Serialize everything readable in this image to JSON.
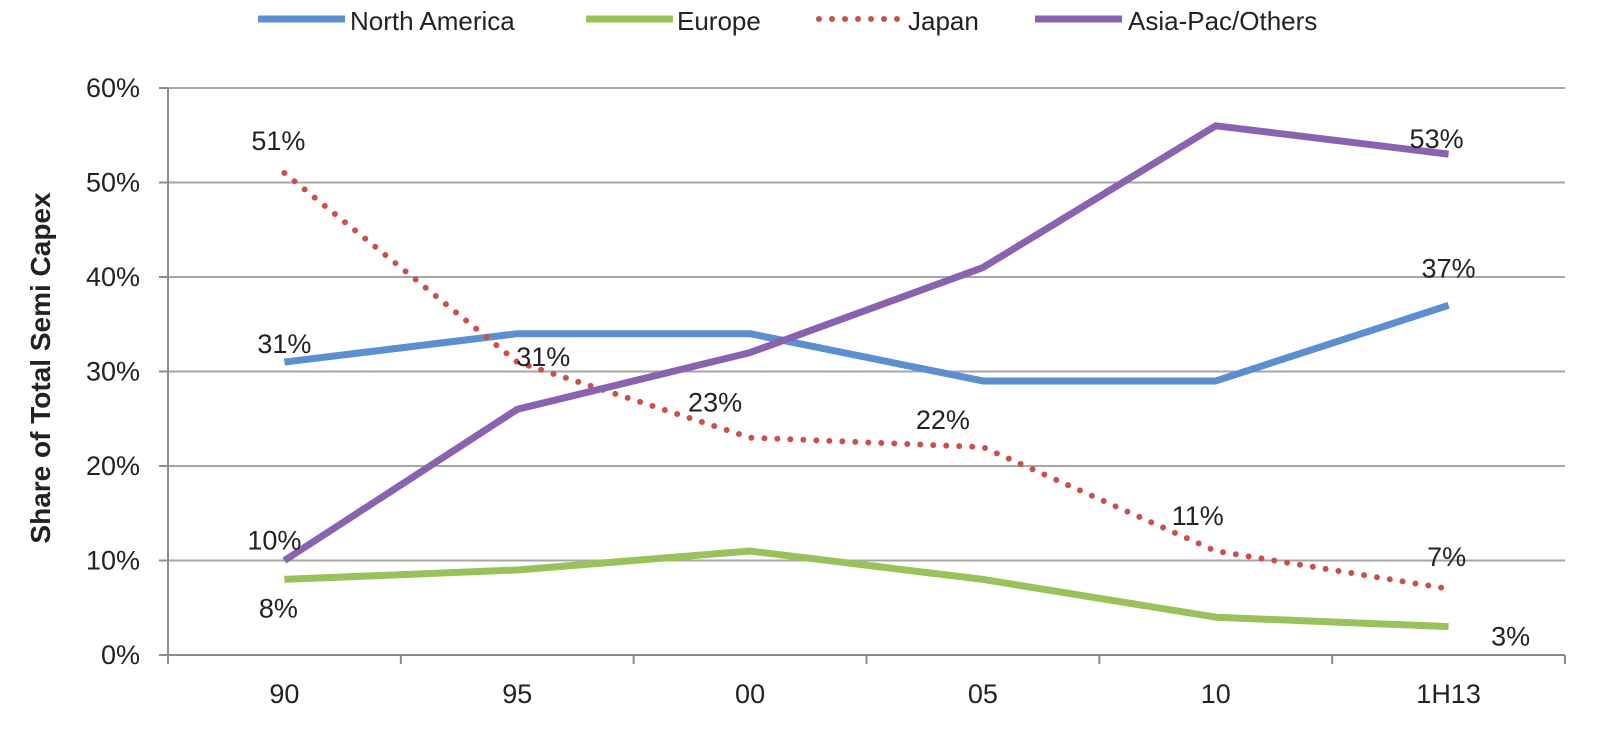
{
  "chart_data": {
    "type": "line",
    "title": "",
    "xlabel": "",
    "ylabel": "Share of Total Semi Capex",
    "categories": [
      "90",
      "95",
      "00",
      "05",
      "10",
      "1H13"
    ],
    "ylim": [
      0,
      60
    ],
    "yticks": [
      0,
      10,
      20,
      30,
      40,
      50,
      60
    ],
    "ytick_labels": [
      "0%",
      "10%",
      "20%",
      "30%",
      "40%",
      "50%",
      "60%"
    ],
    "grid": true,
    "legend_position": "top",
    "series": [
      {
        "name": "North America",
        "color": "#5b8fd0",
        "style": "solid",
        "values": [
          31,
          34,
          34,
          29,
          29,
          37
        ],
        "labels": [
          "31%",
          "",
          "",
          "",
          "",
          "37%"
        ]
      },
      {
        "name": "Europe",
        "color": "#9bc15a",
        "style": "solid",
        "values": [
          8,
          9,
          11,
          8,
          4,
          3
        ],
        "labels": [
          "8%",
          "",
          "",
          "",
          "",
          "3%"
        ]
      },
      {
        "name": "Japan",
        "color": "#c9504b",
        "style": "dotted",
        "values": [
          51,
          31,
          23,
          22,
          11,
          7
        ],
        "labels": [
          "51%",
          "31%",
          "23%",
          "22%",
          "11%",
          "7%"
        ]
      },
      {
        "name": "Asia-Pac/Others",
        "color": "#8a63b0",
        "style": "solid",
        "values": [
          10,
          26,
          32,
          41,
          56,
          53
        ],
        "labels": [
          "10%",
          "",
          "",
          "",
          "",
          "53%"
        ]
      }
    ]
  }
}
